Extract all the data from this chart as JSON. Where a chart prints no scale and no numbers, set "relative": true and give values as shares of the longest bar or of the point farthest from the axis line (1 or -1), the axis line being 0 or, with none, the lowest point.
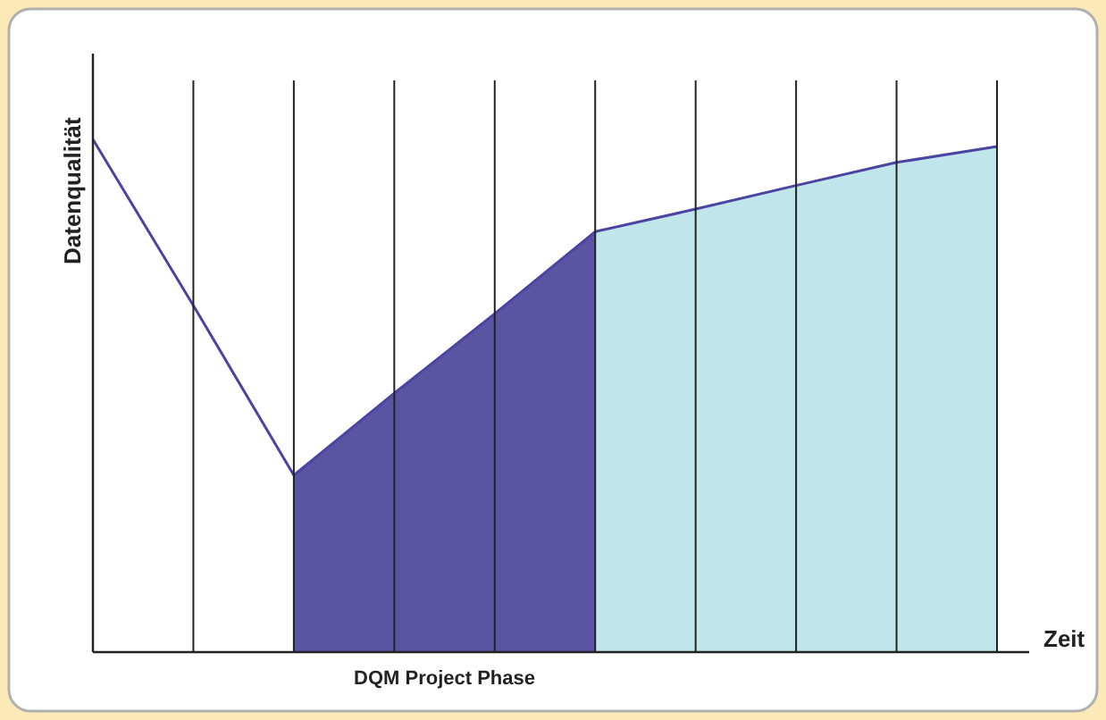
{
  "chart_data": {
    "type": "line",
    "relative": true,
    "ylabel": "Datenqualität",
    "xlabel": "Zeit",
    "annotations": [
      "DQM Project Phase"
    ],
    "grid": "x",
    "categories": [
      null,
      null,
      null,
      null,
      null,
      null,
      null,
      null,
      null,
      null
    ],
    "series": [
      {
        "type": "area",
        "color": "#5b54a3",
        "values": [
          null,
          null,
          0.345,
          0.505,
          0.66,
          0.82,
          null,
          null,
          null,
          null
        ]
      },
      {
        "type": "area",
        "color": "#c0e5ea",
        "values": [
          null,
          null,
          null,
          null,
          null,
          0.82,
          0.864,
          0.91,
          0.955,
          0.986
        ]
      },
      {
        "color": "#4b44a0",
        "values": [
          1,
          0.676,
          0.345,
          0.505,
          0.66,
          0.82,
          0.864,
          0.91,
          0.955,
          0.986
        ]
      }
    ]
  }
}
